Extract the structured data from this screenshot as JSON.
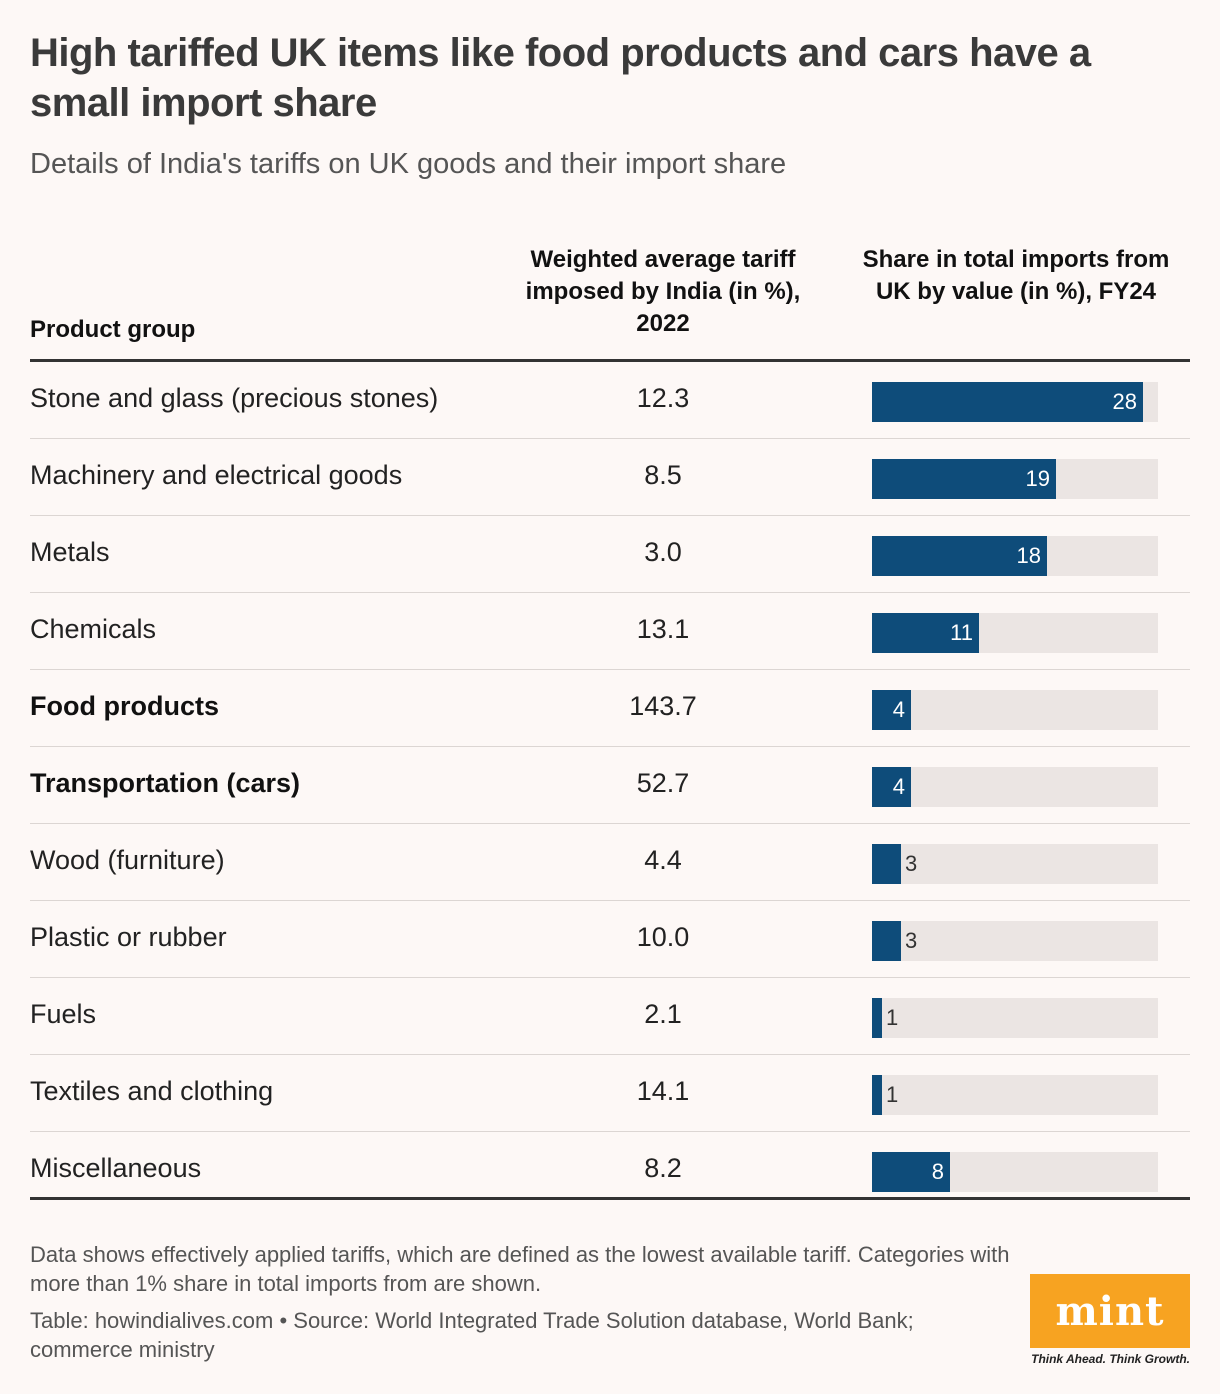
{
  "header": {
    "title": "High tariffed UK items like food products and cars have a small import share",
    "subtitle": "Details of India's tariffs on UK goods and their import share"
  },
  "columns": {
    "product": "Product group",
    "tariff": "Weighted average tariff imposed by India (in %), 2022",
    "share": "Share in total imports from UK by value (in %), FY24"
  },
  "chart_data": {
    "type": "table",
    "title": "High tariffed UK items like food products and cars have a small import share",
    "subtitle": "Details of India's tariffs on UK goods and their import share",
    "columns": [
      "Product group",
      "Weighted average tariff imposed by India (in %), 2022",
      "Share in total imports from UK by value (in %), FY24"
    ],
    "share_max": 29.5,
    "rows": [
      {
        "product": "Stone and glass (precious stones)",
        "tariff": "12.3",
        "share": 28,
        "highlight": false
      },
      {
        "product": "Machinery and electrical goods",
        "tariff": "8.5",
        "share": 19,
        "highlight": false
      },
      {
        "product": "Metals",
        "tariff": "3.0",
        "share": 18,
        "highlight": false
      },
      {
        "product": "Chemicals",
        "tariff": "13.1",
        "share": 11,
        "highlight": false
      },
      {
        "product": "Food products",
        "tariff": "143.7",
        "share": 4,
        "highlight": true
      },
      {
        "product": "Transportation (cars)",
        "tariff": "52.7",
        "share": 4,
        "highlight": true
      },
      {
        "product": "Wood (furniture)",
        "tariff": "4.4",
        "share": 3,
        "highlight": false
      },
      {
        "product": "Plastic or rubber",
        "tariff": "10.0",
        "share": 3,
        "highlight": false
      },
      {
        "product": "Fuels",
        "tariff": "2.1",
        "share": 1,
        "highlight": false
      },
      {
        "product": "Textiles and clothing",
        "tariff": "14.1",
        "share": 1,
        "highlight": false
      },
      {
        "product": "Miscellaneous",
        "tariff": "8.2",
        "share": 8,
        "highlight": false
      }
    ]
  },
  "colors": {
    "bar": "#0e4c7a",
    "track": "#ebe5e3",
    "logo": "#f7a321"
  },
  "footer": {
    "note": "Data shows effectively applied tariffs, which are defined as the lowest available tariff. Categories with more than 1% share in total imports from are shown.",
    "source": "Table: howindialives.com • Source: World Integrated Trade Solution database, World Bank; commerce ministry"
  },
  "logo": {
    "text": "mint",
    "tagline": "Think Ahead. Think Growth."
  }
}
